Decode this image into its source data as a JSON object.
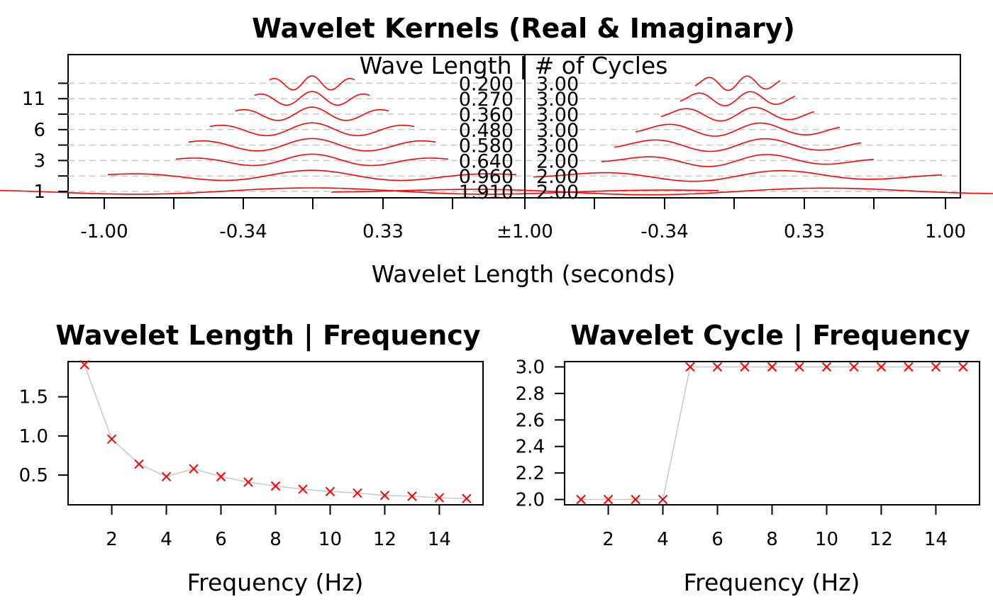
{
  "colors": {
    "kernel": "#ff0000",
    "marker": "#ff0000",
    "connector": "#c8c8c8",
    "guide": "#c8c8c8"
  },
  "chart_data": [
    {
      "id": "kernels",
      "type": "line",
      "title": "Wavelet Kernels (Real & Imaginary)",
      "subtitle": "Wave Length | # of Cycles",
      "xlabel": "Wavelet Length (seconds)",
      "x_tick_labels": [
        "-1.00",
        "-0.34",
        "0.33",
        "±1.00",
        "-0.34",
        "0.33",
        "1.00"
      ],
      "y_tick_labels": [
        "1",
        "3",
        "6",
        "11"
      ],
      "y_tick_rows": [
        1,
        3,
        5,
        7
      ],
      "grid": true,
      "series": [
        {
          "wave_length": 1.91,
          "cycles": 2,
          "label_length": "1.910",
          "label_cycles": "2.00"
        },
        {
          "wave_length": 0.96,
          "cycles": 2,
          "label_length": "0.960",
          "label_cycles": "2.00"
        },
        {
          "wave_length": 0.64,
          "cycles": 2,
          "label_length": "0.640",
          "label_cycles": "2.00"
        },
        {
          "wave_length": 0.58,
          "cycles": 3,
          "label_length": "0.580",
          "label_cycles": "3.00"
        },
        {
          "wave_length": 0.48,
          "cycles": 3,
          "label_length": "0.480",
          "label_cycles": "3.00"
        },
        {
          "wave_length": 0.36,
          "cycles": 3,
          "label_length": "0.360",
          "label_cycles": "3.00"
        },
        {
          "wave_length": 0.27,
          "cycles": 3,
          "label_length": "0.270",
          "label_cycles": "3.00"
        },
        {
          "wave_length": 0.2,
          "cycles": 3,
          "label_length": "0.200",
          "label_cycles": "3.00"
        }
      ]
    },
    {
      "id": "length-vs-frequency",
      "type": "scatter",
      "title": "Wavelet Length | Frequency",
      "xlabel": "Frequency (Hz)",
      "ylabel": "",
      "xlim": [
        0.4,
        15.6
      ],
      "ylim": [
        0.12,
        1.95
      ],
      "x_ticks": [
        2,
        4,
        6,
        8,
        10,
        12,
        14
      ],
      "y_ticks": [
        0.5,
        1.0,
        1.5
      ],
      "y_tick_labels": [
        "0.5",
        "1.0",
        "1.5"
      ],
      "x": [
        1,
        2,
        3,
        4,
        5,
        6,
        7,
        8,
        9,
        10,
        11,
        12,
        13,
        14,
        15
      ],
      "y": [
        1.91,
        0.96,
        0.64,
        0.48,
        0.58,
        0.48,
        0.41,
        0.36,
        0.32,
        0.29,
        0.27,
        0.24,
        0.23,
        0.21,
        0.2
      ]
    },
    {
      "id": "cycle-vs-frequency",
      "type": "scatter",
      "title": "Wavelet Cycle | Frequency",
      "xlabel": "Frequency (Hz)",
      "ylabel": "",
      "xlim": [
        0.4,
        15.6
      ],
      "ylim": [
        1.96,
        3.04
      ],
      "x_ticks": [
        2,
        4,
        6,
        8,
        10,
        12,
        14
      ],
      "y_ticks": [
        2.0,
        2.2,
        2.4,
        2.6,
        2.8,
        3.0
      ],
      "y_tick_labels": [
        "2.0",
        "2.2",
        "2.4",
        "2.6",
        "2.8",
        "3.0"
      ],
      "x": [
        1,
        2,
        3,
        4,
        5,
        6,
        7,
        8,
        9,
        10,
        11,
        12,
        13,
        14,
        15
      ],
      "y": [
        2,
        2,
        2,
        2,
        3,
        3,
        3,
        3,
        3,
        3,
        3,
        3,
        3,
        3,
        3
      ]
    }
  ]
}
